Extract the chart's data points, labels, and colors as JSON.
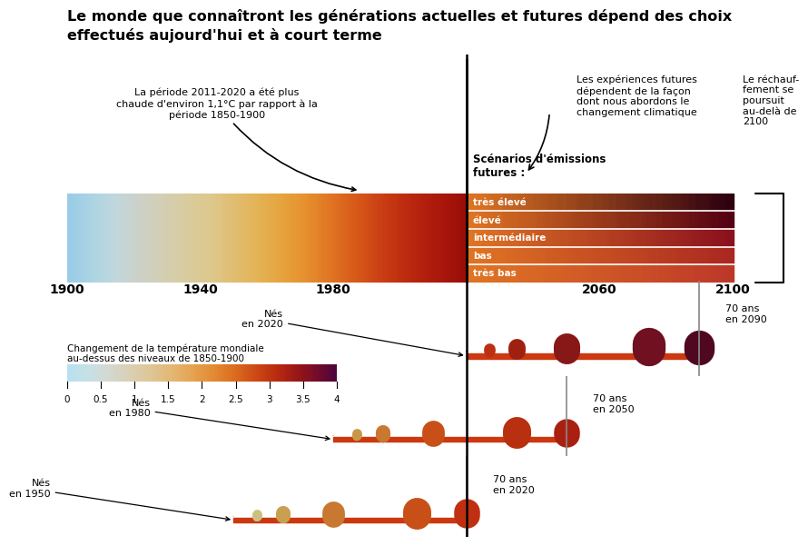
{
  "title_line1": "Le monde que connaîtront les générations actuelles et futures dépend des choix",
  "title_line2": "effectués aujourd'hui et à court terme",
  "title_fontsize": 11.5,
  "year_ticks": [
    1900,
    1940,
    1980,
    2060,
    2100
  ],
  "scenarios": [
    "très élevé",
    "élevé",
    "intermédiaire",
    "bas",
    "très bas"
  ],
  "annotation_period": "La période 2011-2020 a été plus\nchaude d'environ 1,1°C par rapport à la\npériode 1850-1900",
  "annotation_future": "Les expériences futures\ndépendent de la façon\ndont nous abordons le\nchangement climatique",
  "annotation_beyond": "Le réchauf-\nfement se\npoursuit\nau-delà de\n2100",
  "legend_title": "Changement de la température mondiale\nau-dessus des niveaux de 1850-1900",
  "legend_values": [
    "0",
    "0.5",
    "1",
    "1.5",
    "2",
    "2.5",
    "3",
    "3.5",
    "4"
  ],
  "bg_color": "#ffffff",
  "scenario_end_colors": [
    "#2d0010",
    "#540012",
    "#8b101e",
    "#aa2820",
    "#be3828"
  ],
  "gen_configs": [
    {
      "birth": 1950,
      "age70": 2020,
      "label_born": "Nés\nen 1950",
      "label_age": "70 ans\nen 2020",
      "colors": [
        "#ddd5aa",
        "#ccc080",
        "#c8a050",
        "#c87830",
        "#c85018",
        "#c03010"
      ]
    },
    {
      "birth": 1980,
      "age70": 2050,
      "label_born": "Nés\nen 1980",
      "label_age": "70 ans\nen 2050",
      "colors": [
        "#d4b870",
        "#c89848",
        "#c87830",
        "#c85018",
        "#b83010",
        "#aa2010"
      ]
    },
    {
      "birth": 2020,
      "age70": 2090,
      "label_born": "Nés\nen 2020",
      "label_age": "70 ans\nen 2090",
      "colors": [
        "#cc4818",
        "#bb3010",
        "#a02010",
        "#881818",
        "#701020",
        "#500820"
      ]
    }
  ]
}
